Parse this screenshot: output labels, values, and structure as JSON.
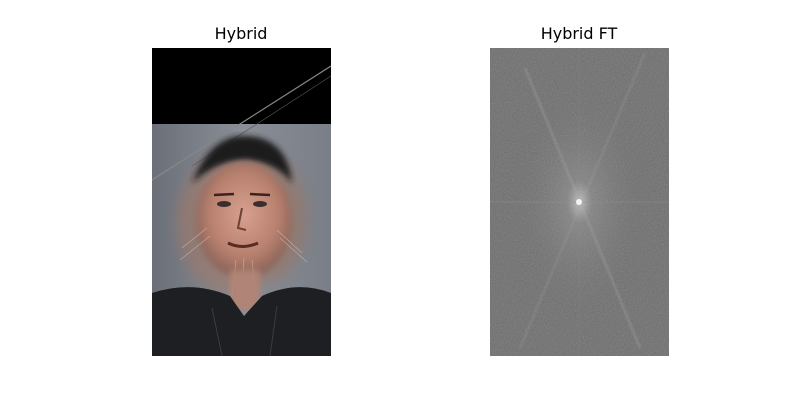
{
  "figure": {
    "panels": [
      {
        "title": "Hybrid",
        "image": "hybrid-face-photo"
      },
      {
        "title": "Hybrid FT",
        "image": "fourier-spectrum"
      }
    ]
  }
}
